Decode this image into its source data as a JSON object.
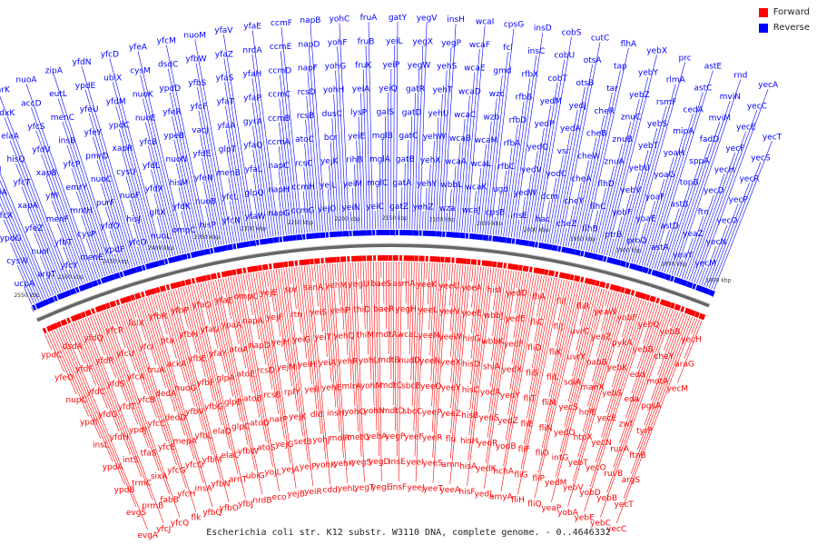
{
  "chart_data": {
    "type": "genome-map",
    "title": "Escherichia coli str. K12 substr. W3110 DNA, complete genome. - 0..4646332",
    "legend": [
      {
        "name": "Forward",
        "color": "#ff0000"
      },
      {
        "name": "Reverse",
        "color": "#0000ff"
      }
    ],
    "axis_ticks_kbp": [
      {
        "label": "1800 kbp"
      },
      {
        "label": "1850 kbp"
      },
      {
        "label": "1900 kbp"
      },
      {
        "label": "1950 kbp"
      },
      {
        "label": "2000 kbp"
      },
      {
        "label": "2050 kbp"
      },
      {
        "label": "2100 kbp"
      },
      {
        "label": "2150 kbp"
      },
      {
        "label": "2200 kbp"
      },
      {
        "label": "2250 kbp"
      },
      {
        "label": "2300 kbp"
      },
      {
        "label": "2350 kbp"
      },
      {
        "label": "2400 kbp"
      },
      {
        "label": "2450 kbp"
      },
      {
        "label": "2500 kbp"
      },
      {
        "label": "2550 kbp"
      }
    ],
    "reverse_genes": [
      "ucpA",
      "cysW",
      "ypdG",
      "yfcX",
      "cvpA",
      "nuoH",
      "cysA",
      "yfdY",
      "yfcV",
      "argT",
      "nuoI",
      "yfeZ",
      "xapA",
      "yfcT",
      "hisQ",
      "elaA",
      "pdxK",
      "emrK",
      "yfcY",
      "yfbT",
      "menF",
      "yffI",
      "xapB",
      "yfdV",
      "yfcS",
      "accD",
      "nuoA",
      "menE",
      "cysP",
      "mntH",
      "emrY",
      "yfcP",
      "insB",
      "menC",
      "eutL",
      "zipA",
      "ypdF",
      "yfdO",
      "purF",
      "nuoC",
      "pmrD",
      "yfeY",
      "yfeU",
      "ypdE",
      "yfdN",
      "yfcO",
      "hisJ",
      "nuoF",
      "cysU",
      "xapR",
      "ypdC",
      "yfdM",
      "ubiX",
      "yfcD",
      "nuoL",
      "gltX",
      "yfdX",
      "yfdL",
      "yfcB",
      "nuoE",
      "nuoK",
      "cysM",
      "yfeA",
      "ompC",
      "yfdK",
      "hisM",
      "nuoN",
      "ypeB",
      "yfeR",
      "ypdD",
      "dsdC",
      "yfcM",
      "hisP",
      "nuoB",
      "yfeN",
      "yfdE",
      "vacJ",
      "yfcF",
      "yfbS",
      "yfbW",
      "nuoM",
      "yfcN",
      "yfcL",
      "menB",
      "glpT",
      "yfaA",
      "yfaT",
      "yfaS",
      "yfaZ",
      "yfaV",
      "yfaW",
      "glpQ",
      "yfaL",
      "yfaQ",
      "gyrA",
      "yfaP",
      "yfaH",
      "nrdA",
      "yfaE",
      "napG",
      "napH",
      "napC",
      "ccmA",
      "ccmB",
      "ccmC",
      "ccmD",
      "ccmE",
      "ccmF",
      "ccmG",
      "ccmH",
      "rcsC",
      "atoC",
      "rcsB",
      "rcsD",
      "napF",
      "napD",
      "napB",
      "yejO",
      "yejL",
      "yejK",
      "bcr",
      "dusC",
      "yohH",
      "yohG",
      "yohF",
      "yohC",
      "yeiN",
      "yeiM",
      "rihB",
      "yeiE",
      "lysP",
      "yeiA",
      "fruK",
      "fruB",
      "fruA",
      "yeiC",
      "mglC",
      "mglA",
      "mglB",
      "galS",
      "yeiQ",
      "yeiP",
      "yeiL",
      "gatY",
      "gatZ",
      "gatA",
      "gatB",
      "gatC",
      "gatD",
      "gatR",
      "yegW",
      "yegX",
      "yegV",
      "yehZ",
      "yehY",
      "yehX",
      "yehW",
      "yehU",
      "yehT",
      "yehS",
      "yegP",
      "insH",
      "wza",
      "wbbL",
      "wcaA",
      "wcaB",
      "wcaC",
      "wcaD",
      "wcaE",
      "wcaF",
      "wcaI",
      "wcaJ",
      "wcaK",
      "wcaL",
      "wcaM",
      "wzb",
      "wzc",
      "gmd",
      "fcl",
      "cpsG",
      "cpsB",
      "ugd",
      "rfbC",
      "rfbA",
      "rfbD",
      "rfbB",
      "rfbX",
      "insC",
      "insD",
      "insE",
      "yedW",
      "yedV",
      "yedQ",
      "yedP",
      "yedM",
      "cobT",
      "cobU",
      "cobS",
      "hac",
      "dcm",
      "yodC",
      "vsr",
      "yedA",
      "yedJ",
      "otsB",
      "otsA",
      "cutC",
      "cheZ",
      "cheY",
      "cheA",
      "cheW",
      "cheB",
      "cheR",
      "tar",
      "tap",
      "flhA",
      "flhB",
      "flhC",
      "flhD",
      "znuA",
      "znuB",
      "znuC",
      "yebZ",
      "yebY",
      "yebX",
      "ptrB",
      "yobF",
      "yebV",
      "yebU",
      "yebT",
      "yebS",
      "rsmF",
      "rlmA",
      "prc",
      "proQ",
      "yoaE",
      "yoaF",
      "yoaG",
      "yoaH",
      "mipA",
      "cedA",
      "astC",
      "astE",
      "astA",
      "astD",
      "astB",
      "topB",
      "sppA",
      "fadD",
      "mviM",
      "mviN",
      "rnd",
      "yeaY",
      "yeaZ",
      "ftn",
      "yecD",
      "yecH",
      "yecF",
      "yecE",
      "yecC",
      "yecA",
      "yecM",
      "yecN",
      "yecO",
      "yecP",
      "yecR",
      "yecS",
      "yecT"
    ],
    "forward_genes": [
      "ypdC",
      "yfeO",
      "nupC",
      "ypdI",
      "insL",
      "ypdA",
      "ypdB",
      "evgS",
      "evgA",
      "dsdA",
      "yfdF",
      "yfdC",
      "yfdG",
      "yfdH",
      "intS",
      "trmC",
      "prmB",
      "yfcJ",
      "yfdQ",
      "yfdR",
      "yfdS",
      "yfdT",
      "ypdJ",
      "tfaS",
      "sixA",
      "fabB",
      "yfcQ",
      "yfcR",
      "yfcU",
      "yfcA",
      "yfcB",
      "yfcC",
      "yfcE",
      "yfcG",
      "yfcH",
      "flk",
      "folX",
      "yfcI",
      "truA",
      "dedA",
      "dedD",
      "mepA",
      "yfcO",
      "insA",
      "yfbQ",
      "yfbR",
      "pta",
      "ackA",
      "nuoG",
      "yfbV",
      "yfbL",
      "yfbM",
      "yfbN",
      "yfbO",
      "yfbP",
      "yfbH",
      "yfbE",
      "yfbF",
      "yfbG",
      "elaD",
      "elaC",
      "arnT",
      "yfbJ",
      "yfaO",
      "yfaU",
      "yfaY",
      "glpA",
      "glpB",
      "glpC",
      "yfbW",
      "ubiG",
      "nrdB",
      "yfaE",
      "ypaA",
      "atoA",
      "atoE",
      "atoB",
      "atoD",
      "atoS",
      "yojL",
      "eco",
      "ompC",
      "napA",
      "napD",
      "rcsD",
      "rcsB",
      "narP",
      "yejG",
      "yejA",
      "yejB",
      "yejE",
      "yejF",
      "yejH",
      "yejM",
      "rplY",
      "yejK",
      "setB",
      "yeiP",
      "yeiR",
      "spr",
      "rtn",
      "yeiG",
      "yeiH",
      "yeiI",
      "dld",
      "yohJ",
      "yohK",
      "cdd",
      "sanA",
      "yeiS",
      "yeiT",
      "yeiA",
      "yehE",
      "insH",
      "molR",
      "yehK",
      "yehL",
      "yehM",
      "yehP",
      "yehQ",
      "yehR",
      "mlrA",
      "yohO",
      "metG",
      "yegS",
      "yegT",
      "yegU",
      "thiD",
      "thiM",
      "yohL",
      "yohM",
      "yohN",
      "yehA",
      "yegD",
      "yegE",
      "baeS",
      "baeR",
      "mdtA",
      "mdtB",
      "mdtC",
      "mdtD",
      "yegP",
      "insE",
      "insF",
      "asmA",
      "yegH",
      "wcaL",
      "nudD",
      "sbcB",
      "sbcC",
      "yeeF",
      "yeeI",
      "yeeJ",
      "yeeK",
      "yeeL",
      "yeeM",
      "yeeN",
      "yeeO",
      "yeeP",
      "yeeR",
      "yeeS",
      "yeeT",
      "yeeU",
      "yeeV",
      "yeeW",
      "yeeX",
      "yeeY",
      "yeeZ",
      "flu",
      "amn",
      "yeeA",
      "yoeA",
      "yoeE",
      "hisG",
      "hisD",
      "hisC",
      "hisB",
      "hisH",
      "hisA",
      "hisF",
      "hisI",
      "wbbJ",
      "wbbK",
      "shiA",
      "yodA",
      "yedS",
      "yedR",
      "yedK",
      "yedL",
      "yedD",
      "yedE",
      "yedF",
      "yedX",
      "yedY",
      "yedZ",
      "yodB",
      "hchA",
      "amyA",
      "fliA",
      "fliC",
      "fliD",
      "fliS",
      "fliT",
      "fliE",
      "fliF",
      "fliG",
      "fliH",
      "fliI",
      "fliJ",
      "fliK",
      "fliL",
      "fliM",
      "fliN",
      "fliO",
      "fliP",
      "fliQ",
      "fliR",
      "uvrC",
      "uvrY",
      "sdiA",
      "yecS",
      "yedO",
      "intG",
      "yedM",
      "yeaP",
      "yeaW",
      "yeaZ",
      "pabB",
      "manX",
      "holE",
      "htpX",
      "yebT",
      "yebV",
      "yobA",
      "yobF",
      "pykA",
      "yebK",
      "yebS",
      "yecE",
      "yecN",
      "yecO",
      "yobD",
      "yebE",
      "yebQ",
      "yebB",
      "edd",
      "eda",
      "zwf",
      "ruvA",
      "ruvB",
      "yebB",
      "yebC",
      "yebB",
      "cheY",
      "motA",
      "pgsA",
      "tyrP",
      "ftnB",
      "argS",
      "yecT",
      "yecC",
      "yecH",
      "araG",
      "yecM"
    ],
    "series": [
      {
        "name": "Forward",
        "values": []
      },
      {
        "name": "Reverse",
        "values": []
      }
    ]
  }
}
